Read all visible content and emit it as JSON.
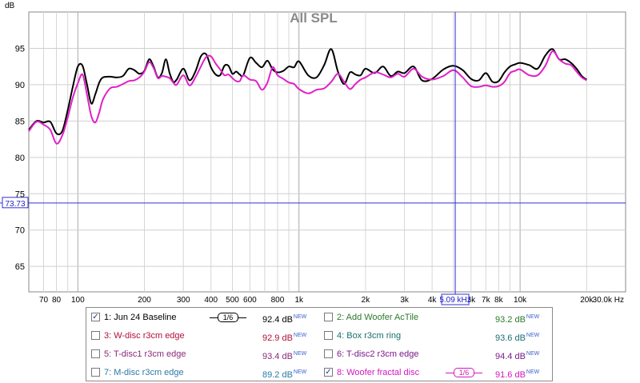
{
  "chart_data": {
    "type": "line",
    "title": "All SPL",
    "ylabel": "dB",
    "xlabel": "Hz",
    "x_scale": "log",
    "xlim": [
      60,
      30000
    ],
    "ylim": [
      61.5,
      100
    ],
    "grid": true,
    "y_ticks": [
      65,
      70,
      75,
      80,
      85,
      90,
      95
    ],
    "x_ticks": [
      {
        "v": 70,
        "label": "70"
      },
      {
        "v": 80,
        "label": "80"
      },
      {
        "v": 100,
        "label": "100"
      },
      {
        "v": 200,
        "label": "200"
      },
      {
        "v": 300,
        "label": "300"
      },
      {
        "v": 400,
        "label": "400"
      },
      {
        "v": 500,
        "label": "500"
      },
      {
        "v": 600,
        "label": "600"
      },
      {
        "v": 800,
        "label": "800"
      },
      {
        "v": 1000,
        "label": "1k"
      },
      {
        "v": 2000,
        "label": "2k"
      },
      {
        "v": 3000,
        "label": "3k"
      },
      {
        "v": 4000,
        "label": "4k"
      },
      {
        "v": 6000,
        "label": "6k"
      },
      {
        "v": 7000,
        "label": "7k"
      },
      {
        "v": 8000,
        "label": "8k"
      },
      {
        "v": 10000,
        "label": "10k"
      },
      {
        "v": 20000,
        "label": "20k"
      },
      {
        "v": 30000,
        "label": "30.0k Hz"
      }
    ],
    "cursor": {
      "y_value": 73.73,
      "y_label": "73.73",
      "x_value": 5090,
      "x_label": "5.09 kHz"
    },
    "series": [
      {
        "name": "1: Jun 24 Baseline",
        "color": "#000000",
        "x": [
          60,
          65,
          70,
          75,
          80,
          85,
          90,
          95,
          100,
          105,
          110,
          115,
          120,
          125,
          130,
          140,
          150,
          160,
          170,
          180,
          190,
          200,
          210,
          220,
          230,
          240,
          250,
          260,
          270,
          280,
          300,
          320,
          340,
          360,
          380,
          400,
          420,
          440,
          460,
          480,
          500,
          520,
          540,
          560,
          600,
          640,
          680,
          720,
          760,
          800,
          850,
          900,
          950,
          1000,
          1100,
          1200,
          1300,
          1400,
          1500,
          1600,
          1700,
          1800,
          1900,
          2000,
          2200,
          2400,
          2600,
          2800,
          3000,
          3300,
          3600,
          4000,
          4500,
          5000,
          5500,
          6000,
          6500,
          7000,
          7500,
          8000,
          8500,
          9000,
          9500,
          10000,
          11000,
          12000,
          13000,
          14000,
          15000,
          16000,
          17000,
          18000,
          19000,
          20000
        ],
        "y": [
          83.8,
          85.0,
          84.8,
          84.9,
          83.3,
          83.6,
          86.5,
          89.8,
          92.5,
          92.6,
          90.0,
          87.4,
          88.7,
          90.3,
          91.0,
          91.1,
          91.0,
          91.2,
          92.2,
          92.0,
          91.5,
          91.9,
          93.5,
          92.5,
          91.0,
          91.6,
          93.5,
          91.6,
          90.4,
          90.7,
          92.2,
          90.6,
          91.8,
          93.9,
          94.2,
          92.4,
          91.4,
          91.3,
          92.6,
          92.6,
          91.5,
          91.8,
          91.4,
          91.3,
          93.7,
          93.0,
          92.4,
          93.3,
          92.1,
          91.7,
          91.9,
          92.5,
          92.4,
          93.2,
          91.3,
          91.0,
          92.7,
          94.9,
          91.8,
          90.1,
          91.7,
          91.4,
          91.3,
          92.2,
          91.6,
          92.5,
          91.2,
          91.8,
          91.6,
          92.5,
          90.6,
          90.8,
          92.1,
          92.6,
          92.0,
          90.8,
          90.6,
          91.6,
          90.4,
          90.5,
          91.7,
          92.5,
          92.8,
          93.0,
          92.7,
          92.2,
          94.0,
          94.9,
          93.5,
          93.5,
          93.0,
          92.2,
          91.2,
          90.7
        ]
      },
      {
        "name": "8: Woofer fractal disc",
        "color": "#e020c8",
        "x": [
          60,
          65,
          70,
          75,
          80,
          85,
          90,
          95,
          100,
          105,
          110,
          115,
          120,
          125,
          130,
          140,
          150,
          160,
          170,
          180,
          190,
          200,
          210,
          220,
          230,
          240,
          250,
          260,
          270,
          280,
          300,
          320,
          340,
          360,
          380,
          400,
          420,
          440,
          460,
          480,
          500,
          520,
          540,
          560,
          600,
          640,
          680,
          720,
          760,
          800,
          850,
          900,
          950,
          1000,
          1100,
          1200,
          1300,
          1400,
          1500,
          1600,
          1700,
          1800,
          1900,
          2000,
          2200,
          2400,
          2600,
          2800,
          3000,
          3300,
          3600,
          4000,
          4500,
          5000,
          5500,
          6000,
          6500,
          7000,
          7500,
          8000,
          8500,
          9000,
          9500,
          10000,
          11000,
          12000,
          13000,
          14000,
          15000,
          16000,
          17000,
          18000,
          19000,
          20000
        ],
        "y": [
          83.6,
          84.9,
          84.5,
          83.8,
          81.9,
          83.0,
          85.5,
          88.3,
          90.2,
          91.4,
          88.6,
          85.7,
          84.8,
          86.2,
          88.0,
          89.5,
          89.7,
          90.1,
          90.5,
          90.6,
          91.0,
          91.8,
          93.1,
          92.3,
          90.9,
          91.2,
          91.1,
          90.9,
          90.3,
          90.0,
          91.3,
          89.9,
          91.0,
          92.5,
          93.8,
          93.9,
          92.9,
          92.1,
          91.3,
          91.4,
          90.9,
          90.5,
          90.5,
          91.3,
          90.7,
          90.5,
          89.3,
          90.3,
          92.4,
          91.3,
          90.8,
          90.3,
          90.1,
          89.4,
          88.8,
          89.3,
          89.5,
          90.4,
          91.5,
          90.4,
          89.4,
          90.1,
          90.7,
          91.0,
          91.7,
          91.4,
          91.0,
          91.5,
          91.1,
          92.2,
          91.1,
          90.7,
          91.2,
          92.0,
          91.0,
          89.8,
          89.7,
          89.9,
          89.7,
          89.8,
          90.4,
          91.6,
          91.9,
          92.1,
          91.3,
          91.3,
          92.6,
          94.6,
          93.5,
          92.9,
          92.7,
          91.8,
          91.0,
          90.6
        ]
      }
    ]
  },
  "legend": {
    "items": [
      {
        "label": "1: Jun 24 Baseline",
        "value": "92.4 dB",
        "badge": "NEW",
        "checked": true,
        "color": "#000000",
        "smoothing": "1/6"
      },
      {
        "label": "2: Add Woofer AcTile",
        "value": "93.2 dB",
        "badge": "NEW",
        "checked": false,
        "color": "#2a7a2a"
      },
      {
        "label": "3: W-disc r3cm edge",
        "value": "92.9 dB",
        "badge": "NEW",
        "checked": false,
        "color": "#b0103a"
      },
      {
        "label": "4: Box r3cm ring",
        "value": "93.6 dB",
        "badge": "NEW",
        "checked": false,
        "color": "#1a6e6e"
      },
      {
        "label": "5: T-disc1 r3cm edge",
        "value": "93.4 dB",
        "badge": "NEW",
        "checked": false,
        "color": "#8a2a7a"
      },
      {
        "label": "6: T-disc2 r3cm edge",
        "value": "94.4 dB",
        "badge": "NEW",
        "checked": false,
        "color": "#7a1a8a"
      },
      {
        "label": "7: M-disc r3cm edge",
        "value": "89.2 dB",
        "badge": "NEW",
        "checked": false,
        "color": "#2a7aa8"
      },
      {
        "label": "8: Woofer fractal disc",
        "value": "91.6 dB",
        "badge": "NEW",
        "checked": true,
        "color": "#d018c0",
        "smoothing": "1/6"
      }
    ]
  }
}
